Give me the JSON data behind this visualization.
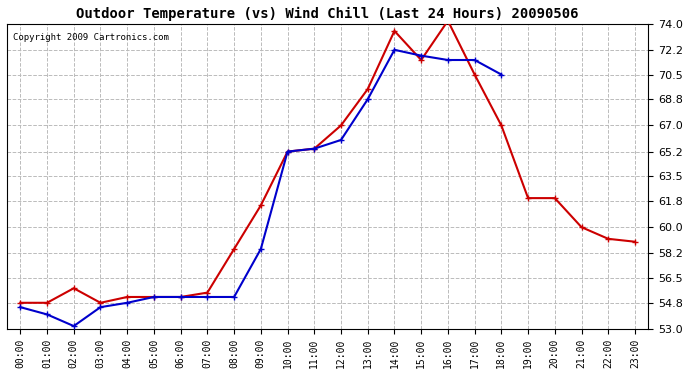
{
  "title": "Outdoor Temperature (vs) Wind Chill (Last 24 Hours) 20090506",
  "copyright_text": "Copyright 2009 Cartronics.com",
  "x_labels": [
    "00:00",
    "01:00",
    "02:00",
    "03:00",
    "04:00",
    "05:00",
    "06:00",
    "07:00",
    "08:00",
    "09:00",
    "10:00",
    "11:00",
    "12:00",
    "13:00",
    "14:00",
    "15:00",
    "16:00",
    "17:00",
    "18:00",
    "19:00",
    "20:00",
    "21:00",
    "22:00",
    "23:00"
  ],
  "y_ticks": [
    53.0,
    54.8,
    56.5,
    58.2,
    60.0,
    61.8,
    63.5,
    65.2,
    67.0,
    68.8,
    70.5,
    72.2,
    74.0
  ],
  "y_min": 53.0,
  "y_max": 74.0,
  "temp_color": "#cc0000",
  "wind_chill_color": "#0000cc",
  "marker": "+",
  "marker_size": 5,
  "line_width": 1.5,
  "grid_color": "#bbbbbb",
  "grid_style": "--",
  "background_color": "#ffffff",
  "temp_data": [
    54.8,
    54.8,
    55.8,
    54.8,
    55.2,
    55.2,
    55.2,
    55.5,
    58.5,
    61.5,
    65.2,
    65.4,
    67.0,
    69.5,
    73.5,
    71.5,
    74.2,
    70.5,
    67.0,
    62.0,
    62.0,
    60.0,
    59.2,
    59.0
  ],
  "wind_chill_data": [
    54.5,
    54.0,
    53.2,
    54.5,
    54.8,
    55.2,
    55.2,
    55.2,
    55.2,
    58.5,
    65.2,
    65.4,
    66.0,
    68.8,
    72.2,
    71.8,
    71.5,
    71.5,
    70.5,
    null,
    null,
    null,
    null,
    null
  ]
}
